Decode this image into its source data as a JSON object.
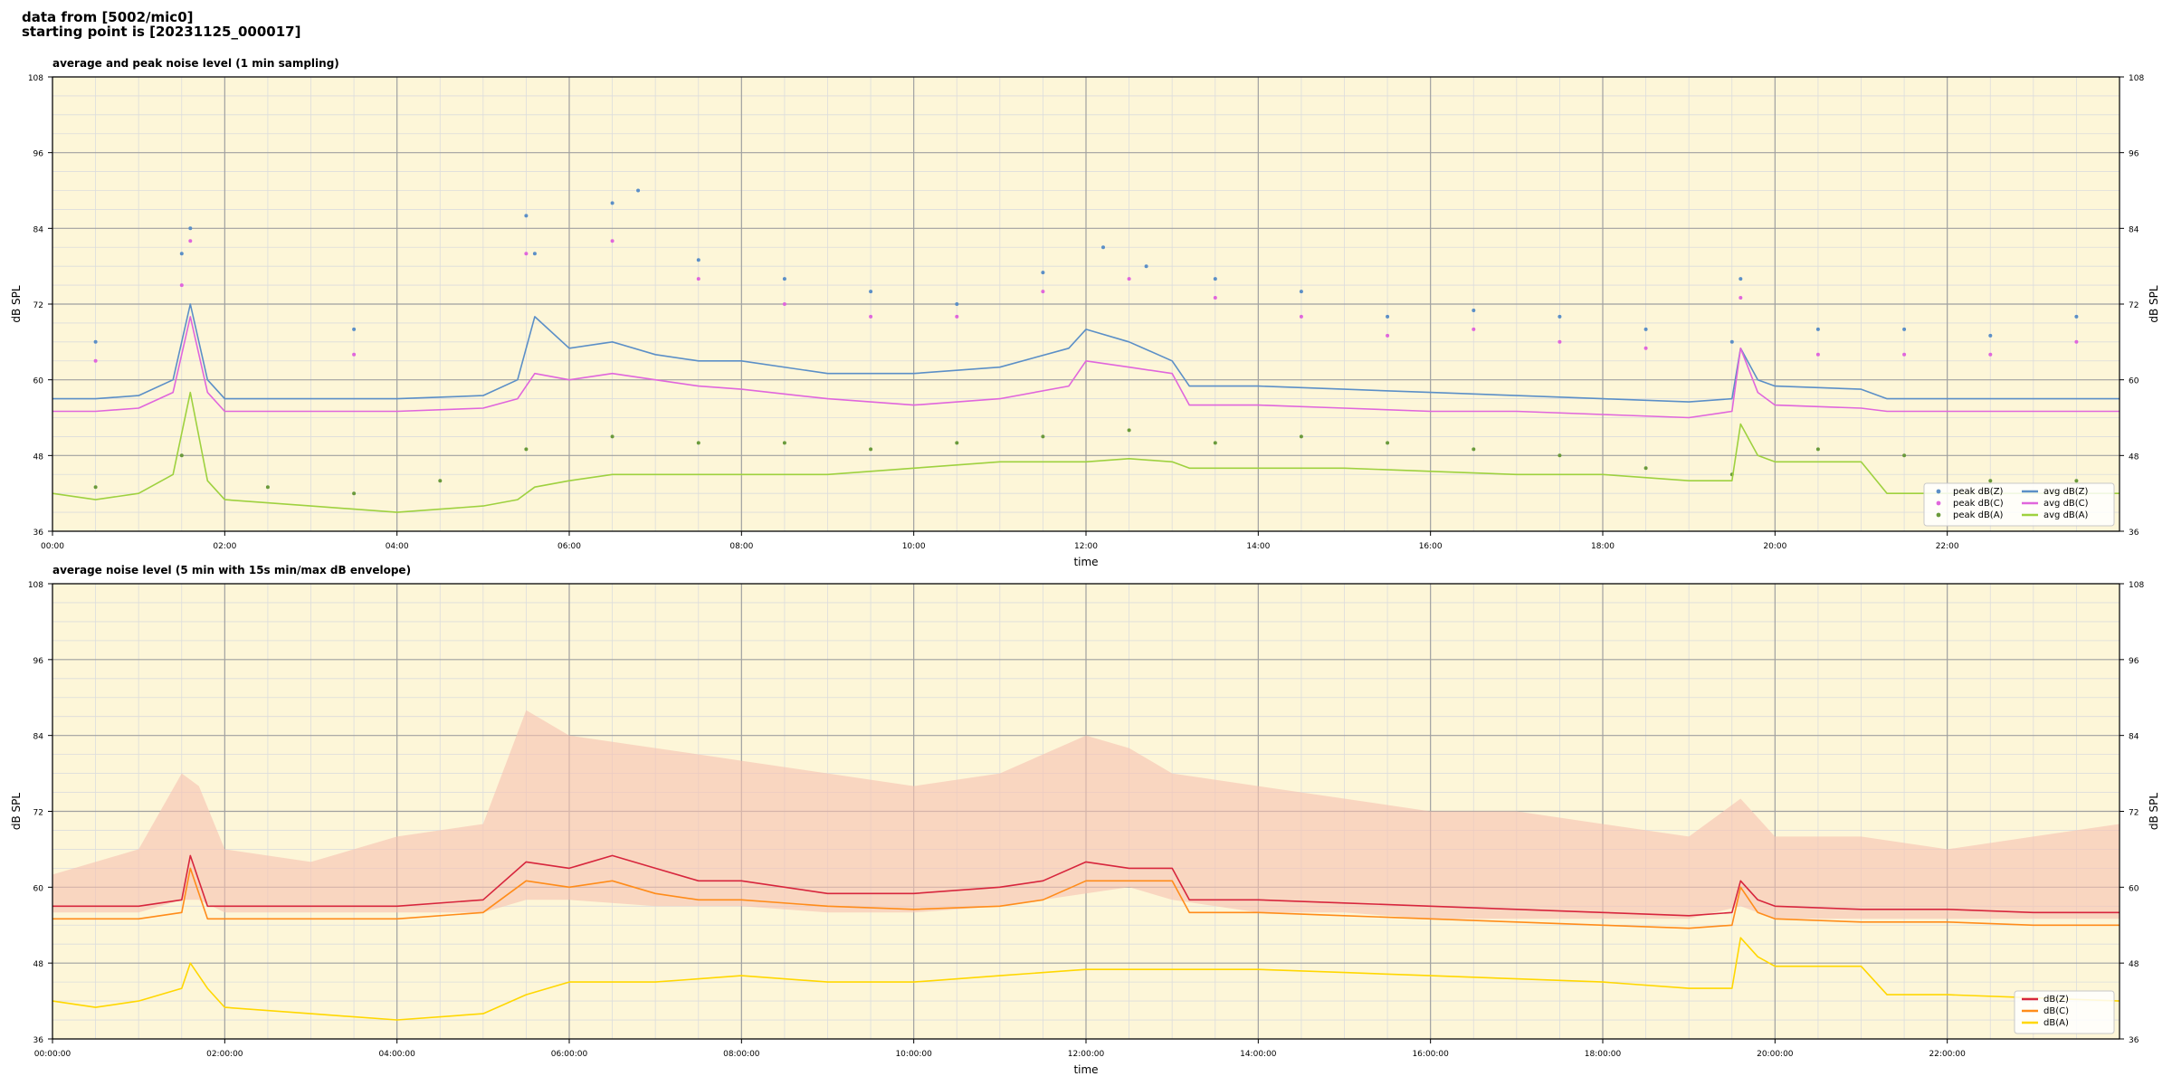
{
  "header": {
    "source": "data from [5002/mic0]",
    "start": "starting point is [20231125_000017]"
  },
  "colors": {
    "plot_bg": "#fdf6d8",
    "grid_major": "#a0a0a0",
    "grid_minor": "#dcdcdc",
    "z_top": "#5b8fc7",
    "c_top": "#e066dc",
    "a_top": "#9ed13f",
    "z_bottom": "#d7263d",
    "c_bottom": "#ff8c1a",
    "a_bottom": "#ffd700",
    "envelope": "#f6c2b0"
  },
  "chart_data": [
    {
      "type": "line",
      "title": "average and peak noise level (1 min sampling)",
      "xlabel": "time",
      "ylabel": "dB SPL",
      "ylim": [
        36,
        108
      ],
      "yticks": [
        36,
        48,
        60,
        72,
        84,
        96,
        108
      ],
      "xticks": [
        "00:00",
        "02:00",
        "04:00",
        "06:00",
        "08:00",
        "10:00",
        "12:00",
        "14:00",
        "16:00",
        "18:00",
        "20:00",
        "22:00"
      ],
      "x_unit": "hours",
      "x_range": [
        0,
        24
      ],
      "grid": true,
      "legend_position": "bottom-right",
      "series": [
        {
          "name": "peak dB(Z)",
          "kind": "scatter",
          "color": "#5b8fc7",
          "x": [
            0.5,
            1.5,
            1.6,
            3.5,
            5.5,
            5.6,
            6.5,
            6.8,
            7.5,
            8.5,
            9.5,
            10.5,
            11.5,
            12.2,
            12.7,
            13.5,
            14.5,
            15.5,
            16.5,
            17.5,
            18.5,
            19.5,
            19.6,
            20.5,
            21.5,
            22.5,
            23.5
          ],
          "y": [
            66,
            80,
            84,
            68,
            86,
            80,
            88,
            90,
            79,
            76,
            74,
            72,
            77,
            81,
            78,
            76,
            74,
            70,
            71,
            70,
            68,
            66,
            76,
            68,
            68,
            67,
            70
          ]
        },
        {
          "name": "peak dB(C)",
          "kind": "scatter",
          "color": "#e066dc",
          "x": [
            0.5,
            1.5,
            1.6,
            3.5,
            5.5,
            6.5,
            7.5,
            8.5,
            9.5,
            10.5,
            11.5,
            12.5,
            13.5,
            14.5,
            15.5,
            16.5,
            17.5,
            18.5,
            19.6,
            20.5,
            21.5,
            22.5,
            23.5
          ],
          "y": [
            63,
            75,
            82,
            64,
            80,
            82,
            76,
            72,
            70,
            70,
            74,
            76,
            73,
            70,
            67,
            68,
            66,
            65,
            73,
            64,
            64,
            64,
            66
          ]
        },
        {
          "name": "peak dB(A)",
          "kind": "scatter",
          "color": "#6a9a3c",
          "x": [
            0.5,
            1.5,
            2.5,
            3.5,
            4.5,
            5.5,
            6.5,
            7.5,
            8.5,
            9.5,
            10.5,
            11.5,
            12.5,
            13.5,
            14.5,
            15.5,
            16.5,
            17.5,
            18.5,
            19.5,
            20.5,
            21.5,
            22.5,
            23.5
          ],
          "y": [
            43,
            48,
            43,
            42,
            44,
            49,
            51,
            50,
            50,
            49,
            50,
            51,
            52,
            50,
            51,
            50,
            49,
            48,
            46,
            45,
            49,
            48,
            44,
            44
          ]
        },
        {
          "name": "avg dB(Z)",
          "kind": "line",
          "color": "#5b8fc7",
          "x": [
            0,
            0.5,
            1,
            1.4,
            1.6,
            1.8,
            2,
            3,
            4,
            5,
            5.4,
            5.6,
            6,
            6.5,
            7,
            7.5,
            8,
            9,
            10,
            11,
            11.8,
            12,
            12.5,
            13,
            13.2,
            14,
            15,
            16,
            17,
            18,
            19,
            19.5,
            19.6,
            19.8,
            20,
            21,
            21.3,
            22,
            23,
            24
          ],
          "y": [
            57,
            57,
            57.5,
            60,
            72,
            60,
            57,
            57,
            57,
            57.5,
            60,
            70,
            65,
            66,
            64,
            63,
            63,
            61,
            61,
            62,
            65,
            68,
            66,
            63,
            59,
            59,
            58.5,
            58,
            57.5,
            57,
            56.5,
            57,
            65,
            60,
            59,
            58.5,
            57,
            57,
            57,
            57
          ]
        },
        {
          "name": "avg dB(C)",
          "kind": "line",
          "color": "#e066dc",
          "x": [
            0,
            0.5,
            1,
            1.4,
            1.6,
            1.8,
            2,
            3,
            4,
            5,
            5.4,
            5.6,
            6,
            6.5,
            7,
            7.5,
            8,
            9,
            10,
            11,
            11.8,
            12,
            12.5,
            13,
            13.2,
            14,
            15,
            16,
            17,
            18,
            19,
            19.5,
            19.6,
            19.8,
            20,
            21,
            21.3,
            22,
            23,
            24
          ],
          "y": [
            55,
            55,
            55.5,
            58,
            70,
            58,
            55,
            55,
            55,
            55.5,
            57,
            61,
            60,
            61,
            60,
            59,
            58.5,
            57,
            56,
            57,
            59,
            63,
            62,
            61,
            56,
            56,
            55.5,
            55,
            55,
            54.5,
            54,
            55,
            65,
            58,
            56,
            55.5,
            55,
            55,
            55,
            55
          ]
        },
        {
          "name": "avg dB(A)",
          "kind": "line",
          "color": "#9ed13f",
          "x": [
            0,
            0.5,
            1,
            1.4,
            1.6,
            1.8,
            2,
            3,
            4,
            5,
            5.4,
            5.6,
            6,
            6.5,
            7,
            7.5,
            8,
            9,
            10,
            11,
            11.8,
            12,
            12.5,
            13,
            13.2,
            14,
            15,
            16,
            17,
            18,
            19,
            19.5,
            19.6,
            19.8,
            20,
            21,
            21.3,
            22,
            23,
            24
          ],
          "y": [
            42,
            41,
            42,
            45,
            58,
            44,
            41,
            40,
            39,
            40,
            41,
            43,
            44,
            45,
            45,
            45,
            45,
            45,
            46,
            47,
            47,
            47,
            47.5,
            47,
            46,
            46,
            46,
            45.5,
            45,
            45,
            44,
            44,
            53,
            48,
            47,
            47,
            42,
            42,
            42,
            42
          ]
        }
      ]
    },
    {
      "type": "line",
      "title": "average noise level (5 min with 15s min/max dB envelope)",
      "xlabel": "time",
      "ylabel": "dB SPL",
      "ylim": [
        36,
        108
      ],
      "yticks": [
        36,
        48,
        60,
        72,
        84,
        96,
        108
      ],
      "xticks": [
        "00:00:00",
        "02:00:00",
        "04:00:00",
        "06:00:00",
        "08:00:00",
        "10:00:00",
        "12:00:00",
        "14:00:00",
        "16:00:00",
        "18:00:00",
        "20:00:00",
        "22:00:00"
      ],
      "x_unit": "hours",
      "x_range": [
        0,
        24
      ],
      "grid": true,
      "legend_position": "bottom-right",
      "envelope": {
        "x": [
          0,
          1,
          1.5,
          1.7,
          2,
          3,
          4,
          5,
          5.5,
          6,
          7,
          8,
          9,
          10,
          11,
          12,
          12.5,
          13,
          14,
          15,
          16,
          17,
          18,
          19,
          19.6,
          20,
          21,
          22,
          23,
          24
        ],
        "low": [
          56,
          56,
          58,
          58,
          56,
          56,
          56,
          56,
          58,
          58,
          57,
          57,
          56,
          56,
          57,
          59,
          60,
          58,
          56,
          56,
          55,
          55,
          55,
          55,
          57,
          55,
          55,
          55,
          55,
          55
        ],
        "high": [
          62,
          66,
          78,
          76,
          66,
          64,
          68,
          70,
          88,
          84,
          82,
          80,
          78,
          76,
          78,
          84,
          82,
          78,
          76,
          74,
          72,
          72,
          70,
          68,
          74,
          68,
          68,
          66,
          68,
          70
        ]
      },
      "series": [
        {
          "name": "dB(Z)",
          "kind": "line",
          "color": "#d7263d",
          "x": [
            0,
            1,
            1.5,
            1.6,
            1.8,
            2,
            3,
            4,
            5,
            5.5,
            6,
            6.5,
            7,
            7.5,
            8,
            9,
            10,
            11,
            11.5,
            12,
            12.5,
            13,
            13.2,
            14,
            15,
            16,
            17,
            18,
            19,
            19.5,
            19.6,
            19.8,
            20,
            21,
            22,
            23,
            24
          ],
          "y": [
            57,
            57,
            58,
            65,
            57,
            57,
            57,
            57,
            58,
            64,
            63,
            65,
            63,
            61,
            61,
            59,
            59,
            60,
            61,
            64,
            63,
            63,
            58,
            58,
            57.5,
            57,
            56.5,
            56,
            55.5,
            56,
            61,
            58,
            57,
            56.5,
            56.5,
            56,
            56
          ]
        },
        {
          "name": "dB(C)",
          "kind": "line",
          "color": "#ff8c1a",
          "x": [
            0,
            1,
            1.5,
            1.6,
            1.8,
            2,
            3,
            4,
            5,
            5.5,
            6,
            6.5,
            7,
            7.5,
            8,
            9,
            10,
            11,
            11.5,
            12,
            12.5,
            13,
            13.2,
            14,
            15,
            16,
            17,
            18,
            19,
            19.5,
            19.6,
            19.8,
            20,
            21,
            22,
            23,
            24
          ],
          "y": [
            55,
            55,
            56,
            63,
            55,
            55,
            55,
            55,
            56,
            61,
            60,
            61,
            59,
            58,
            58,
            57,
            56.5,
            57,
            58,
            61,
            61,
            61,
            56,
            56,
            55.5,
            55,
            54.5,
            54,
            53.5,
            54,
            60,
            56,
            55,
            54.5,
            54.5,
            54,
            54
          ]
        },
        {
          "name": "dB(A)",
          "kind": "line",
          "color": "#ffd700",
          "x": [
            0,
            0.5,
            1,
            1.5,
            1.6,
            1.8,
            2,
            3,
            4,
            5,
            5.5,
            6,
            7,
            8,
            9,
            10,
            11,
            12,
            13,
            14,
            15,
            16,
            17,
            18,
            19,
            19.5,
            19.6,
            19.8,
            20,
            21,
            21.3,
            22,
            23,
            24
          ],
          "y": [
            42,
            41,
            42,
            44,
            48,
            44,
            41,
            40,
            39,
            40,
            43,
            45,
            45,
            46,
            45,
            45,
            46,
            47,
            47,
            47,
            46.5,
            46,
            45.5,
            45,
            44,
            44,
            52,
            49,
            47.5,
            47.5,
            43,
            43,
            42.5,
            42
          ]
        }
      ]
    }
  ]
}
